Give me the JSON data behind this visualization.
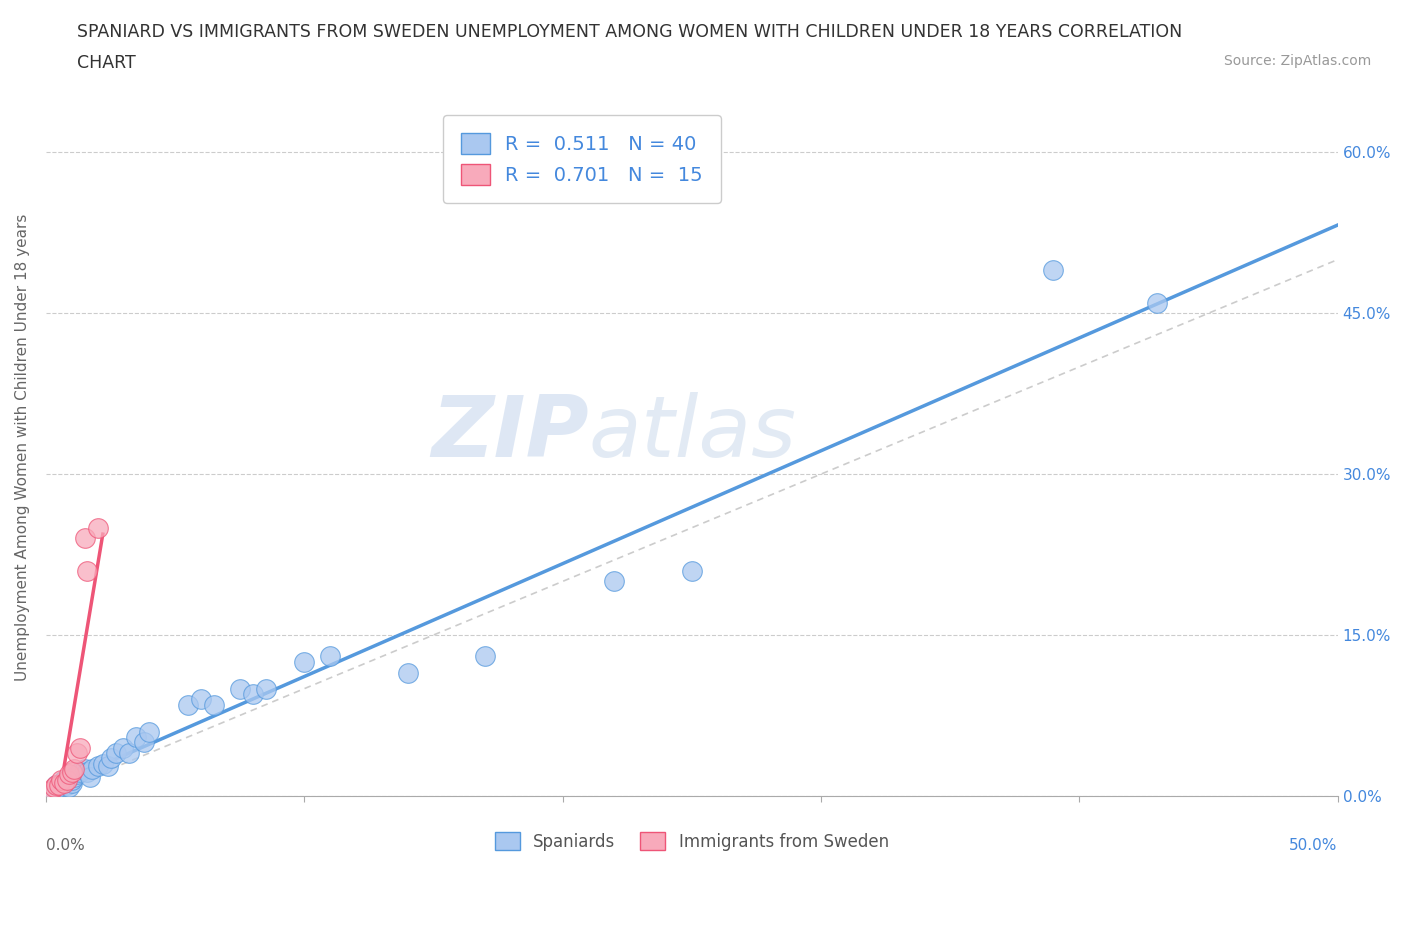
{
  "title_line1": "SPANIARD VS IMMIGRANTS FROM SWEDEN UNEMPLOYMENT AMONG WOMEN WITH CHILDREN UNDER 18 YEARS CORRELATION",
  "title_line2": "CHART",
  "source": "Source: ZipAtlas.com",
  "ylabel": "Unemployment Among Women with Children Under 18 years",
  "r_spaniard": 0.511,
  "n_spaniard": 40,
  "r_sweden": 0.701,
  "n_sweden": 15,
  "spaniard_color": "#aac8f0",
  "sweden_color": "#f8aabb",
  "trendline_spaniard": "#5599dd",
  "trendline_sweden": "#ee5577",
  "diagonal_color": "#cccccc",
  "background_color": "#ffffff",
  "grid_color": "#cccccc",
  "xlim": [
    0,
    0.5
  ],
  "ylim": [
    0,
    0.65
  ],
  "xtick_left": "0.0%",
  "xtick_right": "50.0%",
  "yticks": [
    0.0,
    0.15,
    0.3,
    0.45,
    0.6
  ],
  "ytick_labels": [
    "0.0%",
    "15.0%",
    "30.0%",
    "45.0%",
    "60.0%"
  ],
  "watermark_zip": "ZIP",
  "watermark_atlas": "atlas",
  "legend_text_color": "#4488dd",
  "legend_label_spaniard": "Spaniards",
  "legend_label_sweden": "Immigrants from Sweden",
  "spaniard_x": [
    0.003,
    0.004,
    0.005,
    0.006,
    0.007,
    0.008,
    0.009,
    0.01,
    0.01,
    0.011,
    0.012,
    0.013,
    0.015,
    0.016,
    0.017,
    0.018,
    0.02,
    0.022,
    0.024,
    0.025,
    0.027,
    0.03,
    0.032,
    0.035,
    0.038,
    0.04,
    0.055,
    0.06,
    0.065,
    0.075,
    0.08,
    0.085,
    0.1,
    0.11,
    0.14,
    0.17,
    0.22,
    0.25,
    0.39,
    0.43
  ],
  "spaniard_y": [
    0.005,
    0.01,
    0.008,
    0.012,
    0.015,
    0.01,
    0.008,
    0.012,
    0.015,
    0.018,
    0.02,
    0.022,
    0.025,
    0.022,
    0.018,
    0.025,
    0.028,
    0.03,
    0.028,
    0.035,
    0.04,
    0.045,
    0.04,
    0.055,
    0.05,
    0.06,
    0.085,
    0.09,
    0.085,
    0.1,
    0.095,
    0.1,
    0.125,
    0.13,
    0.115,
    0.13,
    0.2,
    0.21,
    0.49,
    0.46
  ],
  "sweden_x": [
    0.002,
    0.003,
    0.004,
    0.005,
    0.006,
    0.007,
    0.008,
    0.009,
    0.01,
    0.011,
    0.012,
    0.013,
    0.015,
    0.016,
    0.02
  ],
  "sweden_y": [
    0.005,
    0.008,
    0.01,
    0.01,
    0.015,
    0.012,
    0.015,
    0.02,
    0.022,
    0.025,
    0.04,
    0.045,
    0.24,
    0.21,
    0.25
  ]
}
